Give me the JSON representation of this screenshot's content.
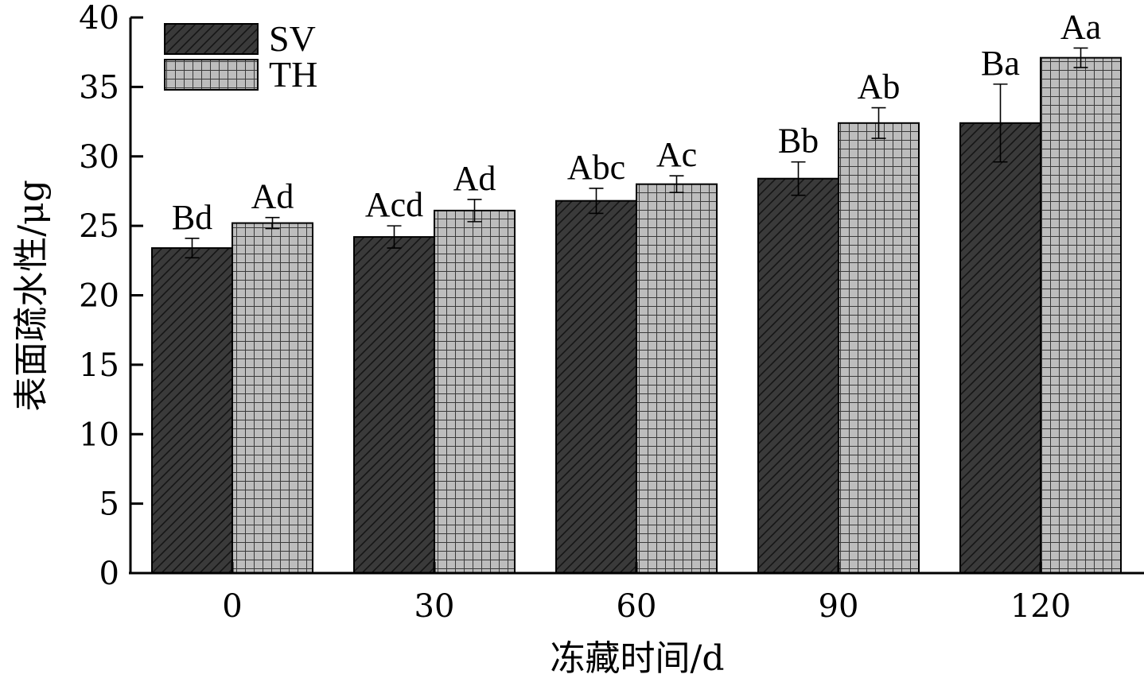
{
  "chart_data": {
    "type": "bar",
    "xlabel": "冻藏时间/d",
    "ylabel": "表面疏水性/μg",
    "categories": [
      "0",
      "30",
      "60",
      "90",
      "120"
    ],
    "ylim": [
      0,
      40
    ],
    "yticks": [
      0,
      5,
      10,
      15,
      20,
      25,
      30,
      35,
      40
    ],
    "grid": false,
    "legend_position": "top-left",
    "series": [
      {
        "name": "SV",
        "pattern": "diagonal-hatch",
        "fill": "#3a3a3a",
        "values": [
          23.4,
          24.2,
          26.8,
          28.4,
          32.4
        ],
        "errors": [
          0.7,
          0.8,
          0.9,
          1.2,
          2.8
        ],
        "labels": [
          "Bd",
          "Acd",
          "Abc",
          "Bb",
          "Ba"
        ]
      },
      {
        "name": "TH",
        "pattern": "grid",
        "fill": "#bdbdbd",
        "values": [
          25.2,
          26.1,
          28.0,
          32.4,
          37.1
        ],
        "errors": [
          0.4,
          0.8,
          0.6,
          1.1,
          0.7
        ],
        "labels": [
          "Ad",
          "Ad",
          "Ac",
          "Ab",
          "Aa"
        ]
      }
    ]
  }
}
